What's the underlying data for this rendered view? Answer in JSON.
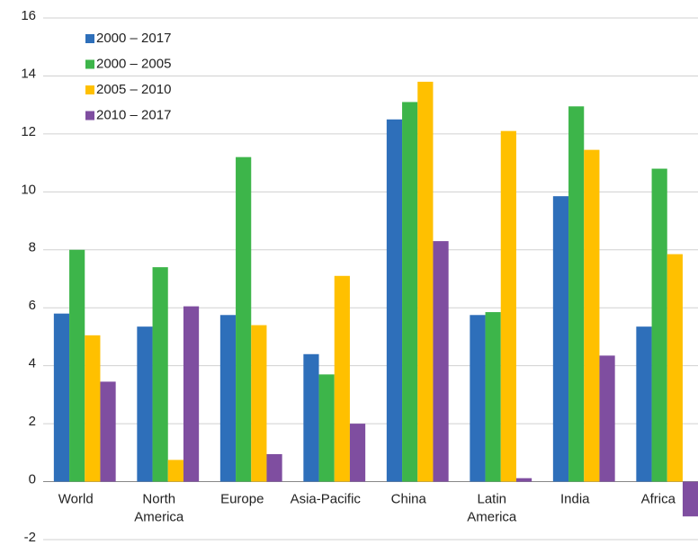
{
  "chart_data": {
    "type": "bar",
    "categories": [
      "World",
      "North America",
      "Europe",
      "Asia-Pacific",
      "China",
      "Latin America",
      "India",
      "Africa"
    ],
    "series": [
      {
        "name": "2000 – 2017",
        "color": "#2e6fba",
        "values": [
          5.8,
          5.35,
          5.75,
          4.4,
          12.5,
          5.75,
          9.85,
          5.35
        ]
      },
      {
        "name": "2000 – 2005",
        "color": "#3db54a",
        "values": [
          8.0,
          7.4,
          11.2,
          3.7,
          13.1,
          5.85,
          12.95,
          10.8
        ]
      },
      {
        "name": "2005 – 2010",
        "color": "#ffc000",
        "values": [
          5.05,
          0.75,
          5.4,
          7.1,
          13.8,
          12.1,
          11.45,
          7.85
        ]
      },
      {
        "name": "2010 – 2017",
        "color": "#7f4ea0",
        "values": [
          3.45,
          6.05,
          0.95,
          2.0,
          8.3,
          0.12,
          4.35,
          -1.2
        ]
      }
    ],
    "ylim": [
      -2,
      16
    ],
    "yticks": [
      -2,
      0,
      2,
      4,
      6,
      8,
      10,
      12,
      14,
      16
    ],
    "grid": true,
    "legend": "top-left"
  }
}
